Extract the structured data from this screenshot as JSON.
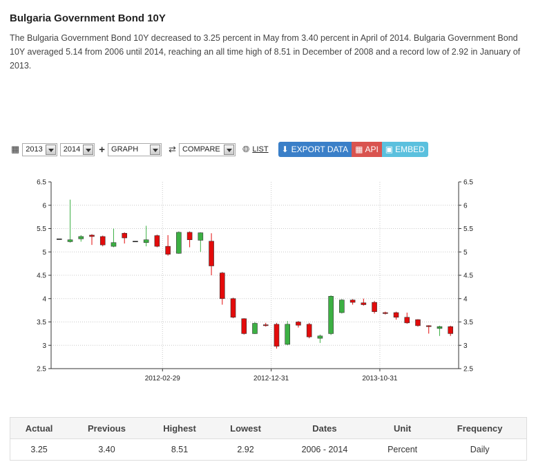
{
  "header": {
    "title": "Bulgaria Government Bond 10Y",
    "description": "The Bulgaria Government Bond 10Y decreased to 3.25 percent in May from 3.40 percent in April of 2014. Bulgaria Government Bond 10Y averaged 5.14 from 2006 until 2014, reaching an all time high of 8.51 in December of 2008 and a record low of 2.92 in January of 2013."
  },
  "toolbar": {
    "calendar_icon": "calendar-icon",
    "year_from": "2013",
    "year_to": "2014",
    "plus_icon": "plus-icon",
    "chart_type": "GRAPH",
    "shuffle_icon": "shuffle-icon",
    "compare": "COMPARE",
    "globe_icon": "globe-icon",
    "list_label": "LIST",
    "export_label": "EXPORT DATA",
    "api_label": "API",
    "embed_label": "EMBED"
  },
  "colors": {
    "up": "#3cb043",
    "down": "#e30b0b",
    "grid": "#c8c8c8"
  },
  "chart_data": {
    "type": "candlestick",
    "ylim": [
      2.5,
      6.5
    ],
    "yticks": [
      "2.5",
      "3",
      "3.5",
      "4",
      "4.5",
      "5",
      "5.5",
      "6",
      "6.5"
    ],
    "xticks": [
      {
        "label": "2012-02-29",
        "index": 9.5
      },
      {
        "label": "2012-12-31",
        "index": 19.5
      },
      {
        "label": "2013-10-31",
        "index": 29.5
      }
    ],
    "grid": true,
    "series": [
      {
        "open": 5.28,
        "close": 5.28,
        "high": 5.28,
        "low": 5.28
      },
      {
        "open": 5.22,
        "close": 5.26,
        "high": 6.12,
        "low": 5.2
      },
      {
        "open": 5.28,
        "close": 5.33,
        "high": 5.36,
        "low": 5.22
      },
      {
        "open": 5.36,
        "close": 5.33,
        "high": 5.38,
        "low": 5.15
      },
      {
        "open": 5.33,
        "close": 5.15,
        "high": 5.35,
        "low": 5.12
      },
      {
        "open": 5.12,
        "close": 5.2,
        "high": 5.5,
        "low": 5.1
      },
      {
        "open": 5.4,
        "close": 5.3,
        "high": 5.42,
        "low": 5.18
      },
      {
        "open": 5.23,
        "close": 5.23,
        "high": 5.23,
        "low": 5.23
      },
      {
        "open": 5.2,
        "close": 5.26,
        "high": 5.56,
        "low": 5.12
      },
      {
        "open": 5.35,
        "close": 5.12,
        "high": 5.37,
        "low": 5.1
      },
      {
        "open": 5.12,
        "close": 4.95,
        "high": 5.36,
        "low": 4.92
      },
      {
        "open": 4.97,
        "close": 5.42,
        "high": 5.44,
        "low": 4.96
      },
      {
        "open": 5.42,
        "close": 5.26,
        "high": 5.44,
        "low": 5.1
      },
      {
        "open": 5.25,
        "close": 5.41,
        "high": 5.42,
        "low": 5.0
      },
      {
        "open": 5.23,
        "close": 4.7,
        "high": 5.4,
        "low": 4.5
      },
      {
        "open": 4.55,
        "close": 4.0,
        "high": 4.57,
        "low": 3.87
      },
      {
        "open": 4.0,
        "close": 3.6,
        "high": 4.02,
        "low": 3.58
      },
      {
        "open": 3.57,
        "close": 3.25,
        "high": 3.58,
        "low": 3.23
      },
      {
        "open": 3.25,
        "close": 3.47,
        "high": 3.5,
        "low": 3.24
      },
      {
        "open": 3.44,
        "close": 3.42,
        "high": 3.48,
        "low": 3.4
      },
      {
        "open": 3.45,
        "close": 2.98,
        "high": 3.48,
        "low": 2.93
      },
      {
        "open": 3.02,
        "close": 3.45,
        "high": 3.52,
        "low": 3.0
      },
      {
        "open": 3.5,
        "close": 3.43,
        "high": 3.52,
        "low": 3.38
      },
      {
        "open": 3.45,
        "close": 3.18,
        "high": 3.48,
        "low": 3.15
      },
      {
        "open": 3.15,
        "close": 3.2,
        "high": 3.23,
        "low": 3.05
      },
      {
        "open": 3.25,
        "close": 4.05,
        "high": 4.07,
        "low": 3.22
      },
      {
        "open": 3.7,
        "close": 3.97,
        "high": 3.99,
        "low": 3.68
      },
      {
        "open": 3.97,
        "close": 3.92,
        "high": 3.99,
        "low": 3.87
      },
      {
        "open": 3.91,
        "close": 3.87,
        "high": 4.0,
        "low": 3.85
      },
      {
        "open": 3.92,
        "close": 3.72,
        "high": 3.95,
        "low": 3.68
      },
      {
        "open": 3.7,
        "close": 3.68,
        "high": 3.72,
        "low": 3.66
      },
      {
        "open": 3.7,
        "close": 3.6,
        "high": 3.72,
        "low": 3.55
      },
      {
        "open": 3.6,
        "close": 3.48,
        "high": 3.7,
        "low": 3.46
      },
      {
        "open": 3.55,
        "close": 3.42,
        "high": 3.56,
        "low": 3.4
      },
      {
        "open": 3.42,
        "close": 3.4,
        "high": 3.43,
        "low": 3.25
      },
      {
        "open": 3.36,
        "close": 3.4,
        "high": 3.42,
        "low": 3.2
      },
      {
        "open": 3.4,
        "close": 3.25,
        "high": 3.42,
        "low": 3.2
      }
    ]
  },
  "stats": {
    "headers": [
      "Actual",
      "Previous",
      "Highest",
      "Lowest",
      "Dates",
      "Unit",
      "Frequency"
    ],
    "values": [
      "3.25",
      "3.40",
      "8.51",
      "2.92",
      "2006 - 2014",
      "Percent",
      "Daily"
    ]
  }
}
